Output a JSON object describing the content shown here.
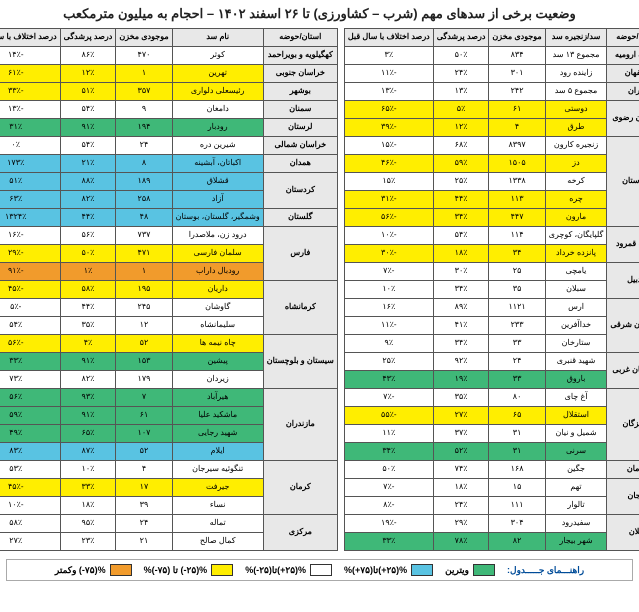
{
  "title": "وضعیت برخی از سدهای مهم (شرب – کشاورزی) تا ۲۶ اسفند ۱۴۰۲ – احجام به میلیون مترمکعب",
  "headers": [
    "استان/حوضه",
    "سد/زنجیره سد",
    "موجودی مخزن",
    "درصد پرشدگی",
    "درصد اختلاف با سال قبل"
  ],
  "headers2": [
    "استان/حوضه",
    "نام سد",
    "موجودی مخزن",
    "درصد پرشدگی",
    "درصد اختلاف با سال قبل"
  ],
  "colors": {
    "none": "#ffffff",
    "green": "#3fb878",
    "yellow": "#ffee00",
    "orange": "#f19b2c",
    "blue": "#59c3e2"
  },
  "legend": {
    "title": "راهنـــمای جـــــدول:",
    "items": [
      {
        "color": "green",
        "label": "ویترین"
      },
      {
        "color": "blue",
        "label": "%(۲۵+)تا(۷۵+)%"
      },
      {
        "color": "none",
        "label": "%(۲۵+)تا(۲۵-)%"
      },
      {
        "color": "yellow",
        "label": "%(۲۵-) تا (۷۵-)%"
      },
      {
        "color": "orange",
        "label": "%(۷۵-) وکمتر"
      }
    ]
  },
  "tableRight": [
    {
      "prov": "دریاچه ارومیه",
      "dam": "مجموع ۱۳ سد",
      "v": "۸۳۴",
      "f": "۵۰٪",
      "d": "۳٪",
      "c": "none"
    },
    {
      "prov": "اصفهان",
      "dam": "زاینده رود",
      "v": "۳۰۱",
      "f": "۲۴٪",
      "d": "-۱۱٪",
      "c": "none"
    },
    {
      "prov": "تهران",
      "dam": "مجموع ۵ سد",
      "v": "۲۴۲",
      "f": "۱۳٪",
      "d": "-۱۳٪",
      "c": "none"
    },
    {
      "prov": "خراسان رضوی",
      "rows": 2,
      "dam": "دوستی",
      "v": "۶۱",
      "f": "۵٪",
      "d": "-۶۵٪",
      "c": "yellow"
    },
    {
      "dam": "طرق",
      "v": "۴",
      "f": "۱۲٪",
      "d": "-۳۹٪",
      "c": "yellow"
    },
    {
      "prov": "خوزستان",
      "rows": 5,
      "dam": "زنجیره کارون",
      "v": "۸۳۹۷",
      "f": "۶۸٪",
      "d": "-۱۵٪",
      "c": "none"
    },
    {
      "dam": "دز",
      "v": "۱۵۰۵",
      "f": "۵۹٪",
      "d": "-۴۶٪",
      "c": "yellow"
    },
    {
      "dam": "کرخه",
      "v": "۱۳۳۸",
      "f": "۲۵٪",
      "d": "۱۵٪",
      "c": "none"
    },
    {
      "dam": "چره",
      "v": "۱۱۳",
      "f": "۴۴٪",
      "d": "-۳۱٪",
      "c": "yellow"
    },
    {
      "dam": "مارون",
      "v": "۴۴۷",
      "f": "۳۴٪",
      "d": "-۵۶٪",
      "c": "yellow"
    },
    {
      "prov": "حوضه قمرود",
      "rows": 2,
      "dam": "گلپایگان، کوچری",
      "v": "۱۱۴",
      "f": "۵۴٪",
      "d": "-۱۰٪",
      "c": "none"
    },
    {
      "dam": "پانزده خرداد",
      "v": "۳۴",
      "f": "۱۸٪",
      "d": "-۳۰٪",
      "c": "yellow"
    },
    {
      "prov": "اردبیل",
      "rows": 2,
      "dam": "یامچی",
      "v": "۲۵",
      "f": "۳۰٪",
      "d": "-۷٪",
      "c": "none"
    },
    {
      "dam": "سبلان",
      "v": "۳۵",
      "f": "۳۴٪",
      "d": "۱۰٪",
      "c": "none"
    },
    {
      "prov": "آذربایجان شرقی",
      "rows": 3,
      "dam": "ارس",
      "v": "۱۱۲۱",
      "f": "۸۹٪",
      "d": "۱۶٪",
      "c": "none"
    },
    {
      "dam": "خداآفرین",
      "v": "۲۳۳",
      "f": "۴۱٪",
      "d": "-۱۱٪",
      "c": "none"
    },
    {
      "dam": "ستارخان",
      "v": "۳۳",
      "f": "۳۴٪",
      "d": "۹٪",
      "c": "none"
    },
    {
      "prov": "آذربایجان غربی",
      "rows": 2,
      "dam": "شهید قنبری",
      "v": "۲۴",
      "f": "۹۲٪",
      "d": "۲۵٪",
      "c": "none"
    },
    {
      "dam": "باروق",
      "v": "۳۳",
      "f": "۱۹٪",
      "d": "۴۳٪",
      "c": "green"
    },
    {
      "prov": "هرمزگان",
      "rows": 4,
      "dam": "آغ چای",
      "v": "۸۰",
      "f": "۳۵٪",
      "d": "-۷٪",
      "c": "none"
    },
    {
      "dam": "استقلال",
      "v": "۶۵",
      "f": "۲۷٪",
      "d": "-۵۵٪",
      "c": "yellow"
    },
    {
      "dam": "شمیل و نیان",
      "v": "۳۱",
      "f": "۳۷٪",
      "d": "۱۱٪",
      "c": "none"
    },
    {
      "dam": "سرنی",
      "v": "۳۱",
      "f": "۵۲٪",
      "d": "۳۴٪",
      "c": "green"
    },
    {
      "prov": "کرمان",
      "dam": "جگین",
      "v": "۱۶۸",
      "f": "۷۴٪",
      "d": "۵۰٪",
      "c": "none"
    },
    {
      "prov": "زنجان",
      "rows": 2,
      "dam": "تهم",
      "v": "۱۵",
      "f": "۱۸٪",
      "d": "-۷٪",
      "c": "none"
    },
    {
      "dam": "تالوار",
      "v": "۱۱۱",
      "f": "۲۴٪",
      "d": "-۸٪",
      "c": "none"
    },
    {
      "prov": "گیلان",
      "rows": 2,
      "dam": "سفیدرود",
      "v": "۳۰۴",
      "f": "۲۹٪",
      "d": "-۱۹٪",
      "c": "none"
    },
    {
      "dam": "شهر بیجار",
      "v": "۸۲",
      "f": "۷۸٪",
      "d": "۳۳٪",
      "c": "green"
    }
  ],
  "tableLeft": [
    {
      "prov": "کهگیلویه و بویراحمد",
      "dam": "کوثر",
      "v": "۴۷۰",
      "f": "۸۶٪",
      "d": "-۱۴٪",
      "c": "none"
    },
    {
      "prov": "خراسان جنوبی",
      "dam": "تهرین",
      "v": "۱",
      "f": "۱۲٪",
      "d": "-۶۱٪",
      "c": "yellow"
    },
    {
      "prov": "بوشهر",
      "dam": "رئیسعلی دلواری",
      "v": "۳۵۷",
      "f": "۵۱٪",
      "d": "-۳۳٪",
      "c": "yellow"
    },
    {
      "prov": "سمنان",
      "dam": "دامغان",
      "v": "۹",
      "f": "۵۴٪",
      "d": "-۱۳٪",
      "c": "none"
    },
    {
      "prov": "لرستان",
      "dam": "رودبار",
      "v": "۱۹۴",
      "f": "۹۱٪",
      "d": "۳۱٪",
      "c": "green"
    },
    {
      "prov": "خراسان شمالی",
      "dam": "شیرین دره",
      "v": "۲۴",
      "f": "۵۴٪",
      "d": "۰٪",
      "c": "none"
    },
    {
      "prov": "همدان",
      "dam": "اکباتان، آبشینه",
      "v": "۸",
      "f": "۲۱٪",
      "d": "۱۷۳٪",
      "c": "blue"
    },
    {
      "prov": "کردستان",
      "rows": 2,
      "dam": "قشلاق",
      "v": "۱۸۹",
      "f": "۸۸٪",
      "d": "۵۱٪",
      "c": "blue"
    },
    {
      "dam": "آزاد",
      "v": "۲۵۸",
      "f": "۸۲٪",
      "d": "۶۳٪",
      "c": "blue"
    },
    {
      "prov": "گلستان",
      "dam": "وشمگیر، گلستان، بوستان",
      "v": "۴۸",
      "f": "۴۴٪",
      "d": "۱۳۲۴٪",
      "c": "blue"
    },
    {
      "prov": "فارس",
      "rows": 3,
      "dam": "درود زن، ملاصدرا",
      "v": "۷۳۷",
      "f": "۵۶٪",
      "d": "-۱۶٪",
      "c": "none"
    },
    {
      "dam": "سلمان فارسی",
      "v": "۴۷۱",
      "f": "۵۰٪",
      "d": "-۲۹٪",
      "c": "yellow"
    },
    {
      "dam": "رودبال داراب",
      "v": "۱",
      "f": "۱٪",
      "d": "-۹۱٪",
      "c": "orange"
    },
    {
      "prov": "کرمانشاه",
      "rows": 3,
      "dam": "داریان",
      "v": "۱۹۵",
      "f": "۵۸٪",
      "d": "-۴۵٪",
      "c": "yellow"
    },
    {
      "dam": "گاوشان",
      "v": "۲۴۵",
      "f": "۴۴٪",
      "d": "-۵٪",
      "c": "none"
    },
    {
      "dam": "سلیمانشاه",
      "v": "۱۲",
      "f": "۳۵٪",
      "d": "۵۴٪",
      "c": "none"
    },
    {
      "prov": "سیستان و بلوچستان",
      "rows": 3,
      "dam": "چاه نیمه ها",
      "v": "۵۲",
      "f": "۴٪",
      "d": "-۵۶٪",
      "c": "yellow"
    },
    {
      "dam": "پیشین",
      "v": "۱۵۳",
      "f": "۹۱٪",
      "d": "۳۳٪",
      "c": "green"
    },
    {
      "dam": "زیردان",
      "v": "۱۷۹",
      "f": "۸۲٪",
      "d": "۷۳٪",
      "c": "none"
    },
    {
      "prov": "مازندران",
      "rows": 4,
      "dam": "هیرآباد",
      "v": "۷",
      "f": "۹۳٪",
      "d": "۵۶٪",
      "c": "green"
    },
    {
      "dam": "ماشکید علیا",
      "v": "۶۱",
      "f": "۹۱٪",
      "d": "۵۹٪",
      "c": "green"
    },
    {
      "dam": "شهید رجایی",
      "v": "۱۰۷",
      "f": "۶۵٪",
      "d": "۴۹٪",
      "c": "green"
    },
    {
      "dam": "ایلام",
      "v": "۵۲",
      "f": "۸۷٪",
      "d": "۸۳٪",
      "c": "blue"
    },
    {
      "prov": "کرمان",
      "rows": 3,
      "dam": "تنگوئیه سیرجان",
      "v": "۴",
      "f": "۱۰٪",
      "d": "۵۳٪",
      "c": "none"
    },
    {
      "dam": "جیرفت",
      "v": "۱۷",
      "f": "۳۳٪",
      "d": "-۴۵٪",
      "c": "yellow"
    },
    {
      "dam": "نساء",
      "v": "۳۹",
      "f": "۱۸٪",
      "d": "-۱۰٪",
      "c": "none"
    },
    {
      "prov": "مرکزی",
      "rows": 2,
      "dam": "تماله",
      "v": "۲۴",
      "f": "۹۵٪",
      "d": "۵۸٪",
      "c": "none"
    },
    {
      "dam": "کمال صالح",
      "v": "۲۱",
      "f": "۲۳٪",
      "d": "۲۷٪",
      "c": "none"
    }
  ]
}
